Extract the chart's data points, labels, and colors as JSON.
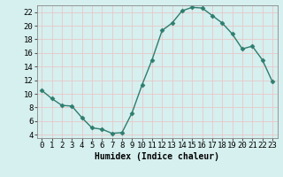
{
  "x": [
    0,
    1,
    2,
    3,
    4,
    5,
    6,
    7,
    8,
    9,
    10,
    11,
    12,
    13,
    14,
    15,
    16,
    17,
    18,
    19,
    20,
    21,
    22,
    23
  ],
  "y": [
    10.5,
    9.3,
    8.3,
    8.2,
    6.5,
    5.0,
    4.8,
    4.2,
    4.3,
    7.2,
    11.3,
    15.0,
    19.3,
    20.4,
    22.2,
    22.7,
    22.6,
    21.5,
    20.4,
    18.8,
    16.6,
    17.0,
    15.0,
    11.8
  ],
  "line_color": "#2e7d6e",
  "marker": "D",
  "marker_size": 2.5,
  "line_width": 1.0,
  "bg_color": "#d6efef",
  "grid_color": "#b8d8d8",
  "xlabel": "Humidex (Indice chaleur)",
  "xlabel_fontsize": 7,
  "tick_fontsize": 6.5,
  "xlim": [
    -0.5,
    23.5
  ],
  "ylim": [
    3.5,
    23.0
  ],
  "yticks": [
    4,
    6,
    8,
    10,
    12,
    14,
    16,
    18,
    20,
    22
  ],
  "xticks": [
    0,
    1,
    2,
    3,
    4,
    5,
    6,
    7,
    8,
    9,
    10,
    11,
    12,
    13,
    14,
    15,
    16,
    17,
    18,
    19,
    20,
    21,
    22,
    23
  ]
}
